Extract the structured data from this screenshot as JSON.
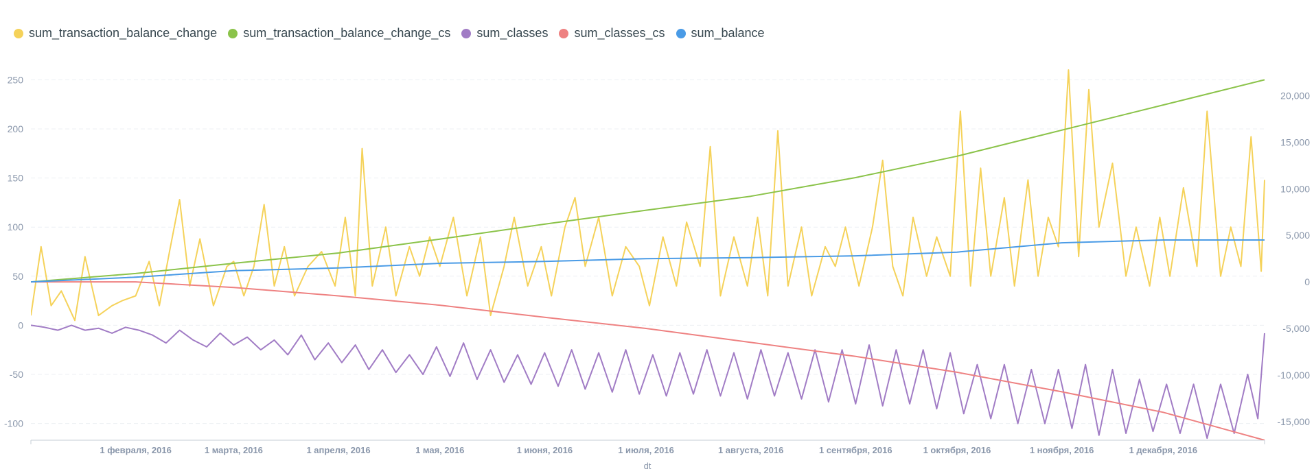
{
  "chart_data": {
    "type": "line",
    "xlabel": "dt",
    "x_range": [
      "2016-01-01",
      "2016-12-31"
    ],
    "grid": {
      "horizontal": true,
      "vertical": false
    },
    "legend_position": "top-left",
    "left_axis": {
      "ylim": [
        -117,
        267
      ],
      "ticks": [
        "250",
        "200",
        "150",
        "100",
        "50",
        "0",
        "-50",
        "-100"
      ],
      "tick_values": [
        250,
        200,
        150,
        100,
        50,
        0,
        -50,
        -100
      ]
    },
    "right_axis": {
      "ylim": [
        -17000,
        23500
      ],
      "ticks": [
        "20,000",
        "15,000",
        "10,000",
        "5,000",
        "0",
        "-5,000",
        "-10,000",
        "-15,000"
      ],
      "tick_values": [
        20000,
        15000,
        10000,
        5000,
        0,
        -5000,
        -10000,
        -15000
      ]
    },
    "x_ticks": [
      {
        "date": "2016-02-01",
        "label": "1 февраля, 2016"
      },
      {
        "date": "2016-03-01",
        "label": "1 марта, 2016"
      },
      {
        "date": "2016-04-01",
        "label": "1 апреля, 2016"
      },
      {
        "date": "2016-05-01",
        "label": "1 мая, 2016"
      },
      {
        "date": "2016-06-01",
        "label": "1 июня, 2016"
      },
      {
        "date": "2016-07-01",
        "label": "1 июля, 2016"
      },
      {
        "date": "2016-08-01",
        "label": "1 августа, 2016"
      },
      {
        "date": "2016-09-01",
        "label": "1 сентября, 2016"
      },
      {
        "date": "2016-10-01",
        "label": "1 октября, 2016"
      },
      {
        "date": "2016-11-01",
        "label": "1 ноября, 2016"
      },
      {
        "date": "2016-12-01",
        "label": "1 декабря, 2016"
      }
    ],
    "series": [
      {
        "name": "sum_transaction_balance_change",
        "color": "#f5d25a",
        "axis": "left",
        "points": [
          [
            "2016-01-01",
            10
          ],
          [
            "2016-01-04",
            80
          ],
          [
            "2016-01-07",
            20
          ],
          [
            "2016-01-10",
            35
          ],
          [
            "2016-01-14",
            5
          ],
          [
            "2016-01-17",
            70
          ],
          [
            "2016-01-21",
            10
          ],
          [
            "2016-01-25",
            20
          ],
          [
            "2016-01-28",
            25
          ],
          [
            "2016-02-01",
            30
          ],
          [
            "2016-02-05",
            65
          ],
          [
            "2016-02-08",
            20
          ],
          [
            "2016-02-11",
            75
          ],
          [
            "2016-02-14",
            128
          ],
          [
            "2016-02-17",
            40
          ],
          [
            "2016-02-20",
            88
          ],
          [
            "2016-02-24",
            20
          ],
          [
            "2016-02-28",
            60
          ],
          [
            "2016-03-01",
            65
          ],
          [
            "2016-03-04",
            30
          ],
          [
            "2016-03-07",
            60
          ],
          [
            "2016-03-10",
            123
          ],
          [
            "2016-03-13",
            40
          ],
          [
            "2016-03-16",
            80
          ],
          [
            "2016-03-19",
            30
          ],
          [
            "2016-03-23",
            60
          ],
          [
            "2016-03-27",
            75
          ],
          [
            "2016-03-31",
            40
          ],
          [
            "2016-04-03",
            110
          ],
          [
            "2016-04-06",
            30
          ],
          [
            "2016-04-08",
            180
          ],
          [
            "2016-04-11",
            40
          ],
          [
            "2016-04-15",
            100
          ],
          [
            "2016-04-18",
            30
          ],
          [
            "2016-04-22",
            80
          ],
          [
            "2016-04-25",
            50
          ],
          [
            "2016-04-28",
            90
          ],
          [
            "2016-05-01",
            60
          ],
          [
            "2016-05-05",
            110
          ],
          [
            "2016-05-09",
            30
          ],
          [
            "2016-05-13",
            90
          ],
          [
            "2016-05-16",
            10
          ],
          [
            "2016-05-20",
            60
          ],
          [
            "2016-05-23",
            110
          ],
          [
            "2016-05-27",
            40
          ],
          [
            "2016-05-31",
            80
          ],
          [
            "2016-06-03",
            30
          ],
          [
            "2016-06-07",
            100
          ],
          [
            "2016-06-10",
            130
          ],
          [
            "2016-06-13",
            60
          ],
          [
            "2016-06-17",
            110
          ],
          [
            "2016-06-21",
            30
          ],
          [
            "2016-06-25",
            80
          ],
          [
            "2016-06-29",
            60
          ],
          [
            "2016-07-02",
            20
          ],
          [
            "2016-07-06",
            90
          ],
          [
            "2016-07-10",
            40
          ],
          [
            "2016-07-13",
            105
          ],
          [
            "2016-07-17",
            60
          ],
          [
            "2016-07-20",
            182
          ],
          [
            "2016-07-23",
            30
          ],
          [
            "2016-07-27",
            90
          ],
          [
            "2016-07-31",
            40
          ],
          [
            "2016-08-03",
            110
          ],
          [
            "2016-08-06",
            30
          ],
          [
            "2016-08-09",
            198
          ],
          [
            "2016-08-12",
            40
          ],
          [
            "2016-08-16",
            100
          ],
          [
            "2016-08-19",
            30
          ],
          [
            "2016-08-23",
            80
          ],
          [
            "2016-08-26",
            60
          ],
          [
            "2016-08-29",
            100
          ],
          [
            "2016-09-02",
            40
          ],
          [
            "2016-09-06",
            100
          ],
          [
            "2016-09-09",
            168
          ],
          [
            "2016-09-12",
            60
          ],
          [
            "2016-09-15",
            30
          ],
          [
            "2016-09-18",
            110
          ],
          [
            "2016-09-22",
            50
          ],
          [
            "2016-09-25",
            90
          ],
          [
            "2016-09-29",
            50
          ],
          [
            "2016-10-02",
            218
          ],
          [
            "2016-10-05",
            40
          ],
          [
            "2016-10-08",
            160
          ],
          [
            "2016-10-11",
            50
          ],
          [
            "2016-10-15",
            130
          ],
          [
            "2016-10-18",
            40
          ],
          [
            "2016-10-22",
            148
          ],
          [
            "2016-10-25",
            50
          ],
          [
            "2016-10-28",
            110
          ],
          [
            "2016-10-31",
            80
          ],
          [
            "2016-11-03",
            260
          ],
          [
            "2016-11-06",
            70
          ],
          [
            "2016-11-09",
            240
          ],
          [
            "2016-11-12",
            100
          ],
          [
            "2016-11-16",
            165
          ],
          [
            "2016-11-20",
            50
          ],
          [
            "2016-11-23",
            100
          ],
          [
            "2016-11-27",
            40
          ],
          [
            "2016-11-30",
            110
          ],
          [
            "2016-12-03",
            50
          ],
          [
            "2016-12-07",
            140
          ],
          [
            "2016-12-11",
            60
          ],
          [
            "2016-12-14",
            218
          ],
          [
            "2016-12-18",
            50
          ],
          [
            "2016-12-21",
            100
          ],
          [
            "2016-12-24",
            60
          ],
          [
            "2016-12-27",
            192
          ],
          [
            "2016-12-30",
            55
          ],
          [
            "2016-12-31",
            148
          ]
        ]
      },
      {
        "name": "sum_transaction_balance_change_cs",
        "color": "#8bc34a",
        "axis": "right",
        "points": [
          [
            "2016-01-01",
            0
          ],
          [
            "2016-02-01",
            900
          ],
          [
            "2016-03-01",
            2000
          ],
          [
            "2016-04-01",
            3100
          ],
          [
            "2016-05-01",
            4600
          ],
          [
            "2016-06-01",
            6200
          ],
          [
            "2016-07-01",
            7700
          ],
          [
            "2016-08-01",
            9200
          ],
          [
            "2016-09-01",
            11200
          ],
          [
            "2016-10-01",
            13500
          ],
          [
            "2016-11-01",
            16300
          ],
          [
            "2016-12-01",
            19000
          ],
          [
            "2016-12-31",
            21700
          ]
        ]
      },
      {
        "name": "sum_classes",
        "color": "#a17cc5",
        "axis": "left",
        "points": [
          [
            "2016-01-01",
            0
          ],
          [
            "2016-01-05",
            -2
          ],
          [
            "2016-01-09",
            -5
          ],
          [
            "2016-01-13",
            0
          ],
          [
            "2016-01-17",
            -5
          ],
          [
            "2016-01-21",
            -3
          ],
          [
            "2016-01-25",
            -8
          ],
          [
            "2016-01-29",
            -2
          ],
          [
            "2016-02-02",
            -5
          ],
          [
            "2016-02-06",
            -10
          ],
          [
            "2016-02-10",
            -18
          ],
          [
            "2016-02-14",
            -5
          ],
          [
            "2016-02-18",
            -15
          ],
          [
            "2016-02-22",
            -22
          ],
          [
            "2016-02-26",
            -8
          ],
          [
            "2016-03-01",
            -20
          ],
          [
            "2016-03-05",
            -12
          ],
          [
            "2016-03-09",
            -25
          ],
          [
            "2016-03-13",
            -15
          ],
          [
            "2016-03-17",
            -30
          ],
          [
            "2016-03-21",
            -10
          ],
          [
            "2016-03-25",
            -35
          ],
          [
            "2016-03-29",
            -18
          ],
          [
            "2016-04-02",
            -38
          ],
          [
            "2016-04-06",
            -20
          ],
          [
            "2016-04-10",
            -45
          ],
          [
            "2016-04-14",
            -25
          ],
          [
            "2016-04-18",
            -48
          ],
          [
            "2016-04-22",
            -30
          ],
          [
            "2016-04-26",
            -50
          ],
          [
            "2016-04-30",
            -22
          ],
          [
            "2016-05-04",
            -52
          ],
          [
            "2016-05-08",
            -18
          ],
          [
            "2016-05-12",
            -55
          ],
          [
            "2016-05-16",
            -25
          ],
          [
            "2016-05-20",
            -58
          ],
          [
            "2016-05-24",
            -30
          ],
          [
            "2016-05-28",
            -60
          ],
          [
            "2016-06-01",
            -28
          ],
          [
            "2016-06-05",
            -62
          ],
          [
            "2016-06-09",
            -25
          ],
          [
            "2016-06-13",
            -65
          ],
          [
            "2016-06-17",
            -28
          ],
          [
            "2016-06-21",
            -68
          ],
          [
            "2016-06-25",
            -25
          ],
          [
            "2016-06-29",
            -70
          ],
          [
            "2016-07-03",
            -30
          ],
          [
            "2016-07-07",
            -72
          ],
          [
            "2016-07-11",
            -28
          ],
          [
            "2016-07-15",
            -70
          ],
          [
            "2016-07-19",
            -25
          ],
          [
            "2016-07-23",
            -72
          ],
          [
            "2016-07-27",
            -28
          ],
          [
            "2016-07-31",
            -75
          ],
          [
            "2016-08-04",
            -25
          ],
          [
            "2016-08-08",
            -72
          ],
          [
            "2016-08-12",
            -28
          ],
          [
            "2016-08-16",
            -75
          ],
          [
            "2016-08-20",
            -25
          ],
          [
            "2016-08-24",
            -78
          ],
          [
            "2016-08-28",
            -25
          ],
          [
            "2016-09-01",
            -80
          ],
          [
            "2016-09-05",
            -20
          ],
          [
            "2016-09-09",
            -82
          ],
          [
            "2016-09-13",
            -25
          ],
          [
            "2016-09-17",
            -80
          ],
          [
            "2016-09-21",
            -25
          ],
          [
            "2016-09-25",
            -85
          ],
          [
            "2016-09-29",
            -28
          ],
          [
            "2016-10-03",
            -90
          ],
          [
            "2016-10-07",
            -40
          ],
          [
            "2016-10-11",
            -95
          ],
          [
            "2016-10-15",
            -40
          ],
          [
            "2016-10-19",
            -100
          ],
          [
            "2016-10-23",
            -45
          ],
          [
            "2016-10-27",
            -100
          ],
          [
            "2016-10-31",
            -45
          ],
          [
            "2016-11-04",
            -105
          ],
          [
            "2016-11-08",
            -40
          ],
          [
            "2016-11-12",
            -112
          ],
          [
            "2016-11-16",
            -45
          ],
          [
            "2016-11-20",
            -110
          ],
          [
            "2016-11-24",
            -55
          ],
          [
            "2016-11-28",
            -108
          ],
          [
            "2016-12-02",
            -60
          ],
          [
            "2016-12-06",
            -110
          ],
          [
            "2016-12-10",
            -60
          ],
          [
            "2016-12-14",
            -115
          ],
          [
            "2016-12-18",
            -60
          ],
          [
            "2016-12-22",
            -110
          ],
          [
            "2016-12-26",
            -50
          ],
          [
            "2016-12-29",
            -95
          ],
          [
            "2016-12-31",
            -8
          ]
        ]
      },
      {
        "name": "sum_classes_cs",
        "color": "#ee8181",
        "axis": "right",
        "points": [
          [
            "2016-01-01",
            0
          ],
          [
            "2016-02-01",
            0
          ],
          [
            "2016-03-01",
            -600
          ],
          [
            "2016-04-01",
            -1500
          ],
          [
            "2016-05-01",
            -2500
          ],
          [
            "2016-06-01",
            -3800
          ],
          [
            "2016-07-01",
            -5000
          ],
          [
            "2016-08-01",
            -6500
          ],
          [
            "2016-09-01",
            -8000
          ],
          [
            "2016-10-01",
            -9700
          ],
          [
            "2016-11-01",
            -11800
          ],
          [
            "2016-12-01",
            -14000
          ],
          [
            "2016-12-31",
            -17000
          ]
        ]
      },
      {
        "name": "sum_balance",
        "color": "#4a9be6",
        "axis": "right",
        "points": [
          [
            "2016-01-01",
            0
          ],
          [
            "2016-02-01",
            500
          ],
          [
            "2016-03-01",
            1200
          ],
          [
            "2016-04-01",
            1500
          ],
          [
            "2016-05-01",
            2000
          ],
          [
            "2016-06-01",
            2200
          ],
          [
            "2016-07-01",
            2500
          ],
          [
            "2016-08-01",
            2600
          ],
          [
            "2016-09-01",
            2800
          ],
          [
            "2016-10-01",
            3200
          ],
          [
            "2016-11-01",
            4200
          ],
          [
            "2016-12-01",
            4500
          ],
          [
            "2016-12-31",
            4500
          ]
        ]
      }
    ]
  }
}
